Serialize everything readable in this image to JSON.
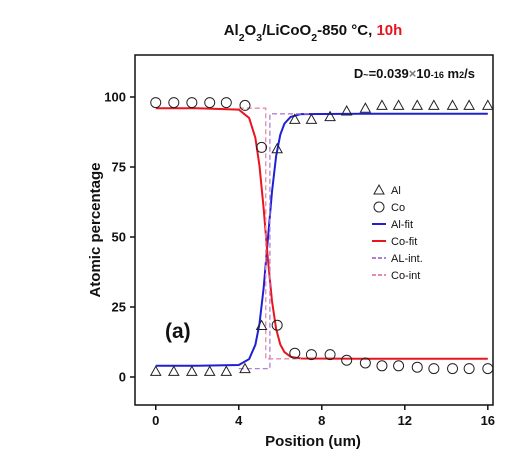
{
  "chart_data": {
    "type": "scatter",
    "title": [
      {
        "text": "Al"
      },
      {
        "text": "2",
        "shift": "sub"
      },
      {
        "text": "O"
      },
      {
        "text": "3",
        "shift": "sub"
      },
      {
        "text": "/LiCoO"
      },
      {
        "text": "2",
        "shift": "sub"
      },
      {
        "text": "-850 °C, "
      },
      {
        "text": "10h",
        "color": "#e8141e"
      }
    ],
    "annotation": [
      {
        "text": "D"
      },
      {
        "text": "~",
        "shift": "sup"
      },
      {
        "text": "=0.039"
      },
      {
        "text": "×",
        "color": "#777777"
      },
      {
        "text": "10"
      },
      {
        "text": "-16",
        "shift": "sup"
      },
      {
        "text": " m"
      },
      {
        "text": "2",
        "shift": "sup"
      },
      {
        "text": "/s"
      }
    ],
    "panel_label": "(a)",
    "x_label": "Position (um)",
    "y_label": "Atomic percentage",
    "xlim": [
      -1,
      16.25
    ],
    "ylim": [
      -10,
      115
    ],
    "xticks": [
      0,
      4,
      8,
      12,
      16
    ],
    "yticks": [
      0,
      25,
      50,
      75,
      100
    ],
    "series": [
      {
        "name": "Al",
        "marker": "triangle",
        "color": "#222222",
        "x": [
          0,
          0.87,
          1.74,
          2.6,
          3.4,
          4.3,
          5.1,
          5.85,
          6.7,
          7.5,
          8.4,
          9.2,
          10.1,
          10.9,
          11.7,
          12.6,
          13.4,
          14.3,
          15.1,
          16
        ],
        "y": [
          2,
          2,
          2,
          2,
          2,
          3,
          18.4,
          81.5,
          92,
          92,
          93,
          95,
          96,
          97,
          97,
          97,
          97,
          97,
          97,
          97
        ]
      },
      {
        "name": "Co",
        "marker": "circle",
        "color": "#222222",
        "x": [
          0,
          0.87,
          1.74,
          2.6,
          3.4,
          4.3,
          5.1,
          5.85,
          6.7,
          7.5,
          8.4,
          9.2,
          10.1,
          10.9,
          11.7,
          12.6,
          13.4,
          14.3,
          15.1,
          16
        ],
        "y": [
          98,
          98,
          98,
          98,
          98,
          97,
          82,
          18.5,
          8.5,
          8,
          8,
          6,
          5,
          4,
          4,
          3.5,
          3,
          3,
          3,
          3
        ]
      },
      {
        "name": "Al-fit",
        "line": "solid",
        "color": "#1f1fd6",
        "x": [
          0,
          2,
          4,
          4.5,
          4.8,
          5.0,
          5.2,
          5.4,
          5.6,
          5.8,
          6.0,
          6.2,
          6.5,
          7,
          10,
          16
        ],
        "y": [
          4,
          4,
          4.3,
          6.4,
          11.5,
          19.1,
          31.9,
          49,
          66.1,
          78.9,
          86.5,
          90.5,
          92.9,
          93.9,
          94,
          94
        ]
      },
      {
        "name": "Co-fit",
        "line": "solid",
        "color": "#e8141e",
        "x": [
          0,
          2,
          4,
          4.5,
          4.8,
          5.0,
          5.2,
          5.3,
          5.4,
          5.6,
          5.8,
          6.0,
          6.2,
          6.5,
          7,
          10,
          16
        ],
        "y": [
          96,
          96,
          95.5,
          92.5,
          85.4,
          75.3,
          60.1,
          51.25,
          42.4,
          27.2,
          17.2,
          11.6,
          8.9,
          7.2,
          6.6,
          6.5,
          6.5
        ]
      },
      {
        "name": "AL-int.",
        "line": "dashed",
        "color": "#b07fd6",
        "x": [
          4,
          5.5,
          5.5,
          7.5
        ],
        "y": [
          3,
          3,
          94,
          94
        ]
      },
      {
        "name": "Co-int",
        "line": "dashed",
        "color": "#e88aa8",
        "x": [
          4,
          5.3,
          5.3,
          7
        ],
        "y": [
          96,
          96,
          6.5,
          6.5
        ]
      }
    ]
  }
}
